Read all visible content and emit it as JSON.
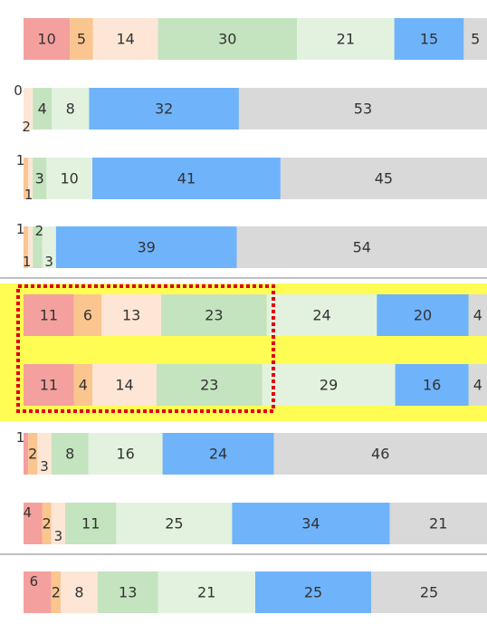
{
  "chart_data": {
    "type": "bar",
    "orientation": "horizontal",
    "stacked": true,
    "percent": true,
    "grid": false,
    "legend": "none",
    "colors": [
      "#f4a09e",
      "#fbc58f",
      "#fde6d5",
      "#c4e3bf",
      "#e2f2df",
      "#6fb3fb",
      "#d9d9d9"
    ],
    "highlight_color": "#fffd54",
    "highlight_box_color": "#e0000f",
    "separator_color": "#bfbfbf",
    "bars": [
      {
        "values": [
          10,
          5,
          14,
          30,
          21,
          15,
          5
        ],
        "labels": [
          "10",
          "5",
          "14",
          "30",
          "21",
          "15",
          "5"
        ]
      },
      {
        "values": [
          0,
          2,
          4,
          8,
          32,
          53
        ],
        "labels": [
          "0",
          "2",
          "4",
          "8",
          "32",
          "53"
        ],
        "offset_colors": true
      },
      {
        "values": [
          1,
          1,
          3,
          10,
          41,
          45
        ],
        "labels": [
          "1",
          "1",
          "3",
          "10",
          "41",
          "45"
        ],
        "offset_colors": true
      },
      {
        "values": [
          1,
          1,
          2,
          3,
          39,
          54
        ],
        "labels": [
          "1",
          "1",
          "2",
          "3",
          "39",
          "54"
        ],
        "offset_colors": true
      },
      {
        "values": [
          11,
          6,
          13,
          23,
          24,
          20,
          4
        ],
        "labels": [
          "11",
          "6",
          "13",
          "23",
          "24",
          "20",
          "4"
        ]
      },
      {
        "values": [
          11,
          4,
          14,
          23,
          29,
          16,
          4
        ],
        "labels": [
          "11",
          "4",
          "14",
          "23",
          "29",
          "16",
          "4"
        ]
      },
      {
        "values": [
          1,
          2,
          3,
          8,
          16,
          24,
          46
        ],
        "labels": [
          "1",
          "2",
          "3",
          "8",
          "16",
          "24",
          "46"
        ]
      },
      {
        "values": [
          4,
          2,
          3,
          11,
          25,
          34,
          21
        ],
        "labels": [
          "4",
          "2",
          "3",
          "11",
          "25",
          "34",
          "21"
        ]
      },
      {
        "values": [
          6,
          2,
          8,
          13,
          21,
          25,
          25
        ],
        "labels": [
          "6",
          "2",
          "8",
          "13",
          "21",
          "25",
          "25"
        ]
      }
    ]
  }
}
